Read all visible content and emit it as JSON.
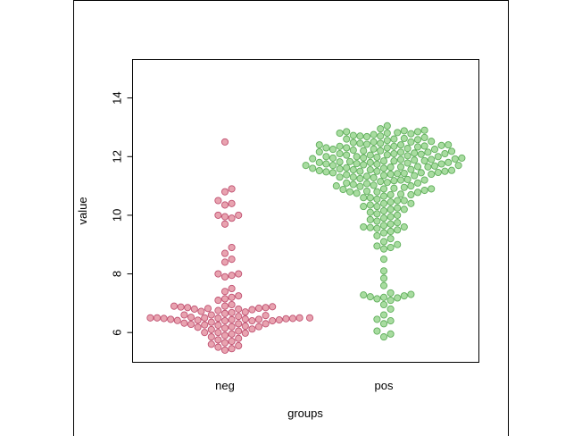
{
  "chart_data": {
    "type": "scatter",
    "subtype": "beeswarm",
    "title": "",
    "xlabel": "groups",
    "ylabel": "value",
    "categories": [
      "neg",
      "pos"
    ],
    "ylim": [
      5,
      15.3
    ],
    "yticks": [
      6,
      8,
      10,
      12,
      14
    ],
    "grid": false,
    "series": [
      {
        "name": "neg",
        "fill": "#e8a3b0",
        "stroke": "#c05070",
        "values": [
          12.5,
          10.9,
          10.8,
          10.5,
          10.4,
          10.35,
          10.0,
          10.0,
          9.95,
          9.9,
          9.7,
          8.9,
          8.7,
          8.5,
          8.4,
          8.0,
          8.0,
          7.95,
          7.9,
          7.5,
          7.4,
          7.25,
          7.2,
          7.15,
          7.1,
          6.95,
          6.9,
          6.9,
          6.88,
          6.87,
          6.85,
          6.85,
          6.83,
          6.82,
          6.8,
          6.8,
          6.78,
          6.75,
          6.72,
          6.7,
          6.68,
          6.65,
          6.6,
          6.6,
          6.58,
          6.55,
          6.52,
          6.5,
          6.5,
          6.5,
          6.5,
          6.5,
          6.49,
          6.48,
          6.48,
          6.47,
          6.46,
          6.45,
          6.45,
          6.44,
          6.43,
          6.42,
          6.41,
          6.4,
          6.4,
          6.4,
          6.35,
          6.32,
          6.3,
          6.3,
          6.28,
          6.26,
          6.25,
          6.22,
          6.2,
          6.2,
          6.18,
          6.15,
          6.12,
          6.1,
          6.05,
          6.0,
          6.0,
          5.98,
          5.95,
          5.9,
          5.85,
          5.8,
          5.75,
          5.7,
          5.65,
          5.6,
          5.55,
          5.5,
          5.45,
          5.4
        ]
      },
      {
        "name": "pos",
        "fill": "#a8dca0",
        "stroke": "#5fae5a",
        "values": [
          13.05,
          12.95,
          12.9,
          12.88,
          12.85,
          12.85,
          12.82,
          12.8,
          12.8,
          12.78,
          12.75,
          12.72,
          12.7,
          12.7,
          12.68,
          12.65,
          12.62,
          12.6,
          12.6,
          12.58,
          12.55,
          12.52,
          12.5,
          12.5,
          12.48,
          12.45,
          12.45,
          12.42,
          12.4,
          12.4,
          12.4,
          12.38,
          12.36,
          12.35,
          12.35,
          12.33,
          12.3,
          12.3,
          12.3,
          12.28,
          12.26,
          12.25,
          12.25,
          12.22,
          12.2,
          12.2,
          12.18,
          12.16,
          12.15,
          12.15,
          12.12,
          12.1,
          12.1,
          12.1,
          12.08,
          12.06,
          12.05,
          12.05,
          12.03,
          12.0,
          12.0,
          12.0,
          11.98,
          11.96,
          11.95,
          11.95,
          11.93,
          11.92,
          11.9,
          11.9,
          11.88,
          11.86,
          11.85,
          11.85,
          11.83,
          11.82,
          11.8,
          11.8,
          11.8,
          11.78,
          11.76,
          11.75,
          11.75,
          11.74,
          11.72,
          11.7,
          11.7,
          11.7,
          11.68,
          11.66,
          11.65,
          11.65,
          11.64,
          11.62,
          11.6,
          11.6,
          11.58,
          11.56,
          11.55,
          11.55,
          11.53,
          11.52,
          11.5,
          11.5,
          11.5,
          11.48,
          11.46,
          11.45,
          11.45,
          11.43,
          11.42,
          11.4,
          11.4,
          11.38,
          11.36,
          11.35,
          11.33,
          11.3,
          11.3,
          11.28,
          11.25,
          11.22,
          11.2,
          11.2,
          11.18,
          11.15,
          11.12,
          11.1,
          11.1,
          11.08,
          11.05,
          11.02,
          11.0,
          11.0,
          10.98,
          10.95,
          10.92,
          10.9,
          10.9,
          10.88,
          10.85,
          10.82,
          10.8,
          10.8,
          10.78,
          10.75,
          10.72,
          10.7,
          10.7,
          10.65,
          10.6,
          10.6,
          10.55,
          10.5,
          10.5,
          10.45,
          10.4,
          10.4,
          10.35,
          10.3,
          10.3,
          10.25,
          10.2,
          10.2,
          10.15,
          10.1,
          10.05,
          10.0,
          9.95,
          9.9,
          9.85,
          9.8,
          9.75,
          9.7,
          9.65,
          9.6,
          9.6,
          9.58,
          9.55,
          9.5,
          9.45,
          9.4,
          9.3,
          9.2,
          9.1,
          9.0,
          8.95,
          8.9,
          8.85,
          8.5,
          8.1,
          7.85,
          7.6,
          7.35,
          7.3,
          7.28,
          7.25,
          7.22,
          7.2,
          7.18,
          7.15,
          7.1,
          6.95,
          6.8,
          6.6,
          6.45,
          6.4,
          6.3,
          6.05,
          5.95,
          5.85
        ]
      }
    ]
  }
}
